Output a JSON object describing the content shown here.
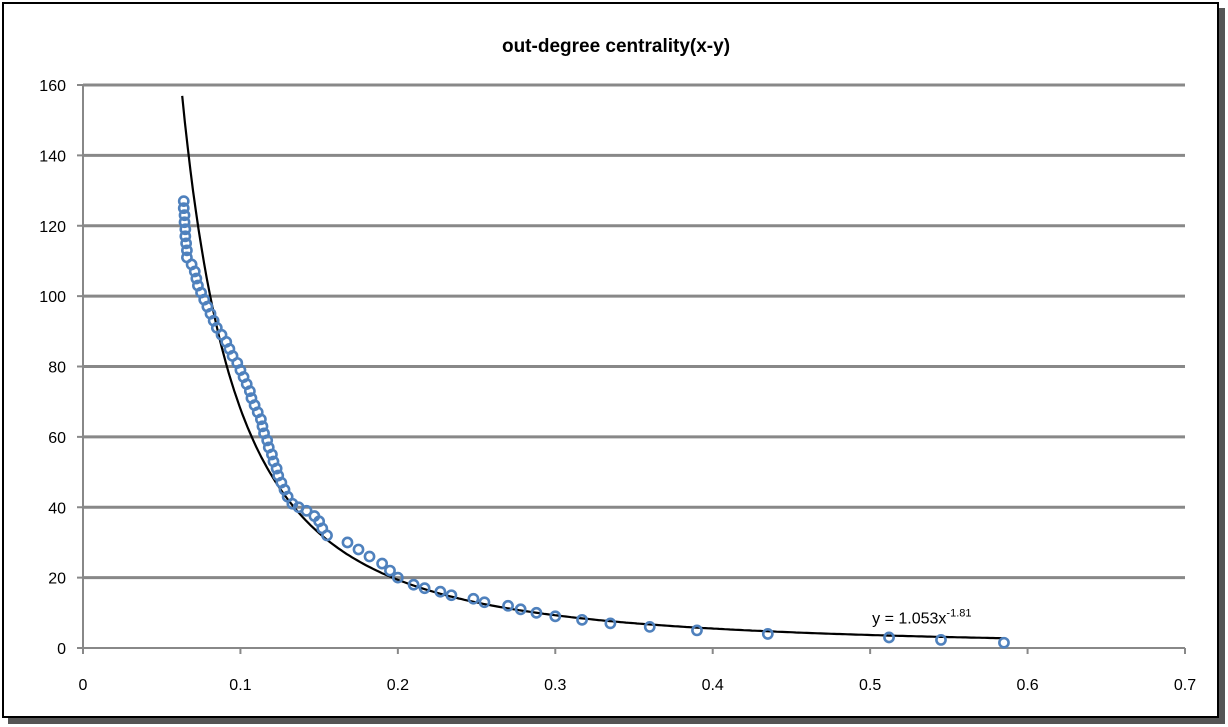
{
  "chart_data": {
    "type": "scatter",
    "title": "out-degree centrality(x-y)",
    "xlabel": "",
    "ylabel": "",
    "xlim": [
      0,
      0.7
    ],
    "ylim": [
      0,
      160
    ],
    "x_ticks": [
      0,
      0.1,
      0.2,
      0.3,
      0.4,
      0.5,
      0.6,
      0.7
    ],
    "x_tick_labels": [
      "0",
      "0.1",
      "0.2",
      "0.3",
      "0.4",
      "0.5",
      "0.6",
      "0.7"
    ],
    "y_ticks": [
      0,
      20,
      40,
      60,
      80,
      100,
      120,
      140,
      160
    ],
    "y_tick_labels": [
      "0",
      "20",
      "40",
      "60",
      "80",
      "100",
      "120",
      "140",
      "160"
    ],
    "grid": "horizontal",
    "legend": "none",
    "series": [
      {
        "name": "data",
        "marker": "circle",
        "color": "#4F81BD",
        "points": [
          [
            0.064,
            127
          ],
          [
            0.064,
            125
          ],
          [
            0.0645,
            123
          ],
          [
            0.0645,
            121
          ],
          [
            0.065,
            119
          ],
          [
            0.065,
            117
          ],
          [
            0.0655,
            115
          ],
          [
            0.066,
            113
          ],
          [
            0.066,
            111
          ],
          [
            0.069,
            109
          ],
          [
            0.071,
            107
          ],
          [
            0.072,
            105
          ],
          [
            0.073,
            103
          ],
          [
            0.075,
            101
          ],
          [
            0.077,
            99
          ],
          [
            0.079,
            97
          ],
          [
            0.081,
            95
          ],
          [
            0.083,
            93
          ],
          [
            0.085,
            91
          ],
          [
            0.088,
            89
          ],
          [
            0.091,
            87
          ],
          [
            0.093,
            85
          ],
          [
            0.095,
            83
          ],
          [
            0.098,
            81
          ],
          [
            0.1,
            79
          ],
          [
            0.102,
            77
          ],
          [
            0.104,
            75
          ],
          [
            0.106,
            73
          ],
          [
            0.107,
            71
          ],
          [
            0.109,
            69
          ],
          [
            0.111,
            67
          ],
          [
            0.113,
            65
          ],
          [
            0.114,
            63
          ],
          [
            0.115,
            61
          ],
          [
            0.117,
            59
          ],
          [
            0.118,
            57
          ],
          [
            0.12,
            55
          ],
          [
            0.121,
            53
          ],
          [
            0.123,
            51
          ],
          [
            0.124,
            49
          ],
          [
            0.126,
            47
          ],
          [
            0.128,
            45
          ],
          [
            0.13,
            43
          ],
          [
            0.133,
            41
          ],
          [
            0.137,
            40
          ],
          [
            0.142,
            39
          ],
          [
            0.147,
            37.5
          ],
          [
            0.15,
            36
          ],
          [
            0.152,
            34
          ],
          [
            0.155,
            32
          ],
          [
            0.168,
            30
          ],
          [
            0.175,
            28
          ],
          [
            0.182,
            26
          ],
          [
            0.19,
            24
          ],
          [
            0.195,
            22
          ],
          [
            0.2,
            20
          ],
          [
            0.21,
            18
          ],
          [
            0.217,
            17
          ],
          [
            0.227,
            16
          ],
          [
            0.234,
            15
          ],
          [
            0.248,
            14
          ],
          [
            0.255,
            13
          ],
          [
            0.27,
            12
          ],
          [
            0.278,
            11
          ],
          [
            0.288,
            10
          ],
          [
            0.3,
            9
          ],
          [
            0.317,
            8
          ],
          [
            0.335,
            7
          ],
          [
            0.36,
            6
          ],
          [
            0.39,
            5
          ],
          [
            0.435,
            4
          ],
          [
            0.512,
            3
          ],
          [
            0.545,
            2.3
          ],
          [
            0.585,
            1.5
          ]
        ]
      }
    ],
    "trendline": {
      "type": "power",
      "a": 1.053,
      "b": -1.81,
      "x_range": [
        0.063,
        0.585
      ],
      "color": "#000000",
      "equation_label": "y = 1.053x",
      "equation_exponent": "-1.81",
      "equation_anchor": [
        0.5,
        7
      ]
    }
  }
}
